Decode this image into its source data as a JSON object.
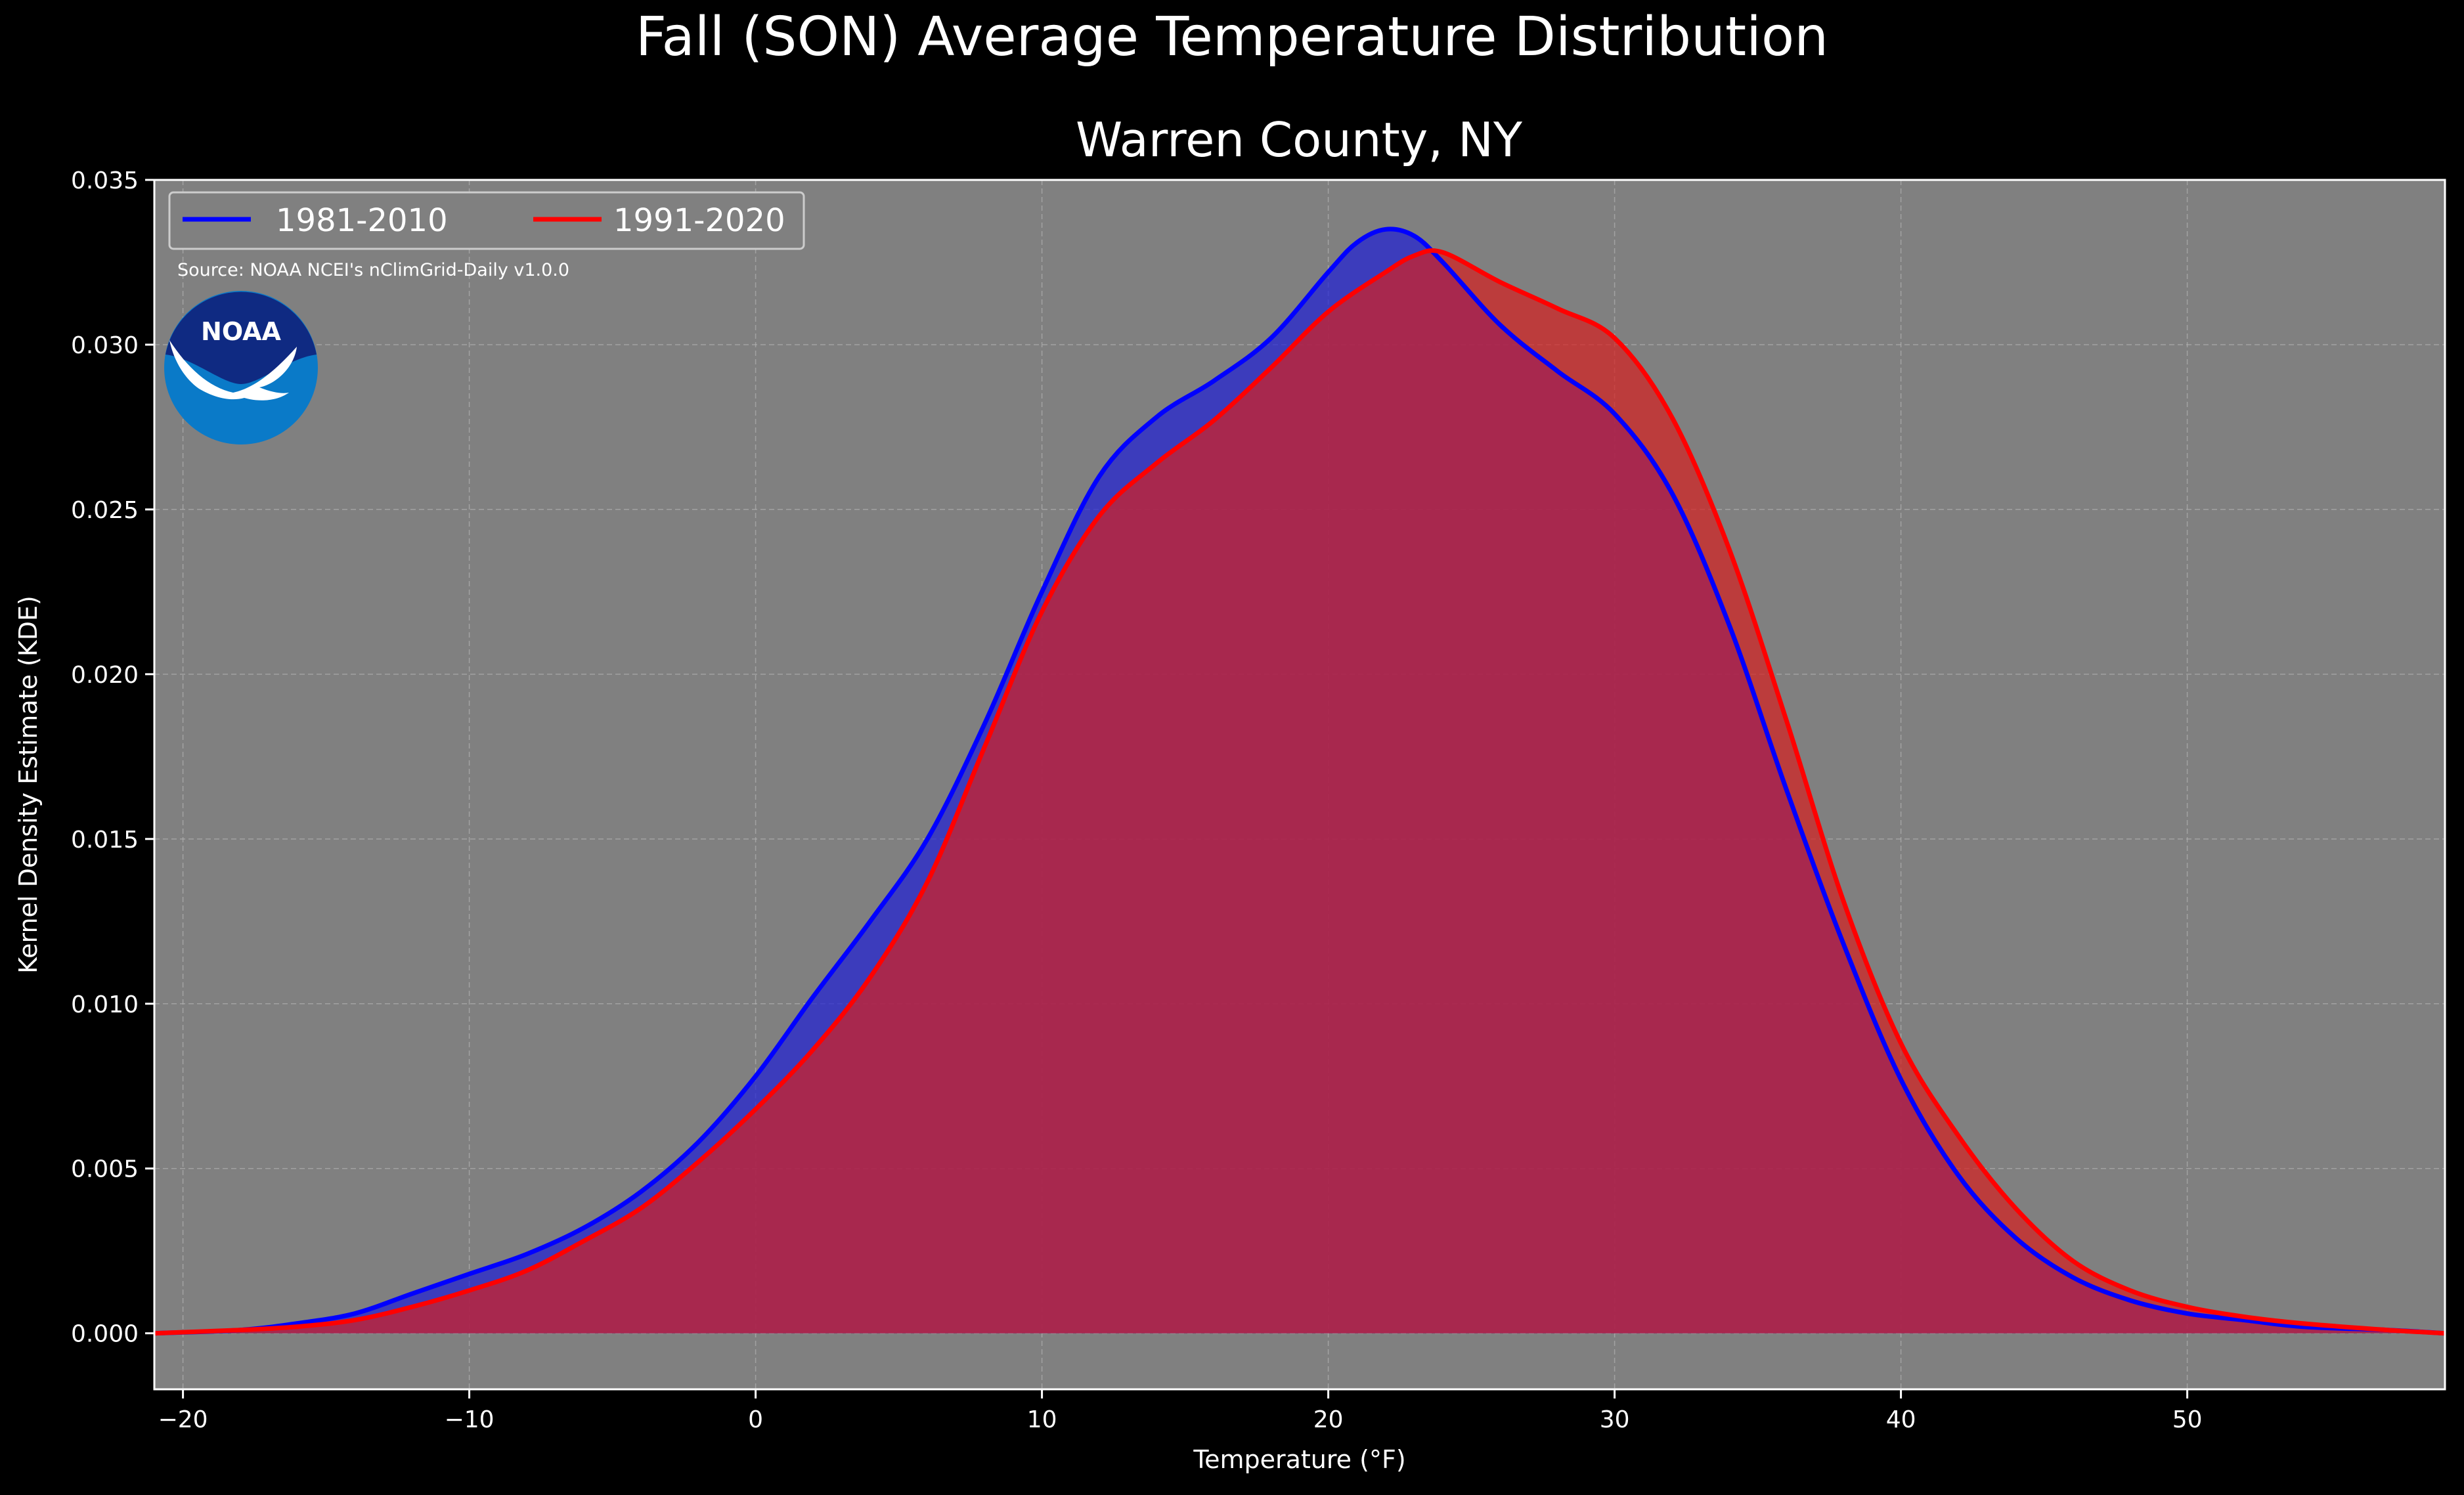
{
  "chart_data": {
    "type": "area",
    "title": "Fall (SON) Average Temperature Distribution",
    "subtitle": "Warren County, NY",
    "xlabel": "Temperature (°F)",
    "ylabel": "Kernel Density Estimate (KDE)",
    "xlim": [
      -21,
      59
    ],
    "ylim": [
      -0.0017,
      0.035
    ],
    "x_ticks": [
      -20,
      -10,
      0,
      10,
      20,
      30,
      40,
      50
    ],
    "x_tick_labels": [
      "−20",
      "−10",
      "0",
      "10",
      "20",
      "30",
      "40",
      "50"
    ],
    "y_ticks": [
      0.0,
      0.005,
      0.01,
      0.015,
      0.02,
      0.025,
      0.03,
      0.035
    ],
    "y_tick_labels": [
      "0.000",
      "0.005",
      "0.010",
      "0.015",
      "0.020",
      "0.025",
      "0.030",
      "0.035"
    ],
    "grid": true,
    "legend_position": "top-left",
    "source_note": "Source: NOAA NCEI's nClimGrid-Daily v1.0.0",
    "logo_text": "NOAA",
    "background_color": "#000000",
    "plot_background_color": "#808080",
    "series": [
      {
        "name": "1981-2010",
        "color": "#0000ff",
        "fill_color": "#2020d6",
        "points": [
          [
            -21,
            0
          ],
          [
            -18,
            0.0001
          ],
          [
            -16,
            0.0003
          ],
          [
            -14,
            0.0006
          ],
          [
            -12,
            0.0012
          ],
          [
            -10,
            0.0018
          ],
          [
            -8,
            0.0024
          ],
          [
            -6,
            0.0032
          ],
          [
            -4,
            0.0043
          ],
          [
            -2,
            0.0058
          ],
          [
            0,
            0.0078
          ],
          [
            2,
            0.0102
          ],
          [
            4,
            0.0125
          ],
          [
            6,
            0.015
          ],
          [
            8,
            0.0185
          ],
          [
            10,
            0.0225
          ],
          [
            12,
            0.026
          ],
          [
            14,
            0.0278
          ],
          [
            16,
            0.0289
          ],
          [
            18,
            0.0302
          ],
          [
            20,
            0.0322
          ],
          [
            21,
            0.0331
          ],
          [
            22,
            0.0335
          ],
          [
            23,
            0.0333
          ],
          [
            24,
            0.0325
          ],
          [
            26,
            0.0306
          ],
          [
            28,
            0.0292
          ],
          [
            30,
            0.0279
          ],
          [
            32,
            0.0255
          ],
          [
            34,
            0.0215
          ],
          [
            36,
            0.0165
          ],
          [
            38,
            0.0118
          ],
          [
            40,
            0.0077
          ],
          [
            42,
            0.0048
          ],
          [
            44,
            0.0029
          ],
          [
            46,
            0.0017
          ],
          [
            48,
            0.001
          ],
          [
            50,
            0.0006
          ],
          [
            52,
            0.0004
          ],
          [
            54,
            0.0002
          ],
          [
            57,
            0.0001
          ],
          [
            59,
            0
          ]
        ]
      },
      {
        "name": "1991-2020",
        "color": "#ff0000",
        "fill_color": "#d62020",
        "points": [
          [
            -21,
            0
          ],
          [
            -18,
            0.0001
          ],
          [
            -16,
            0.0002
          ],
          [
            -14,
            0.0004
          ],
          [
            -12,
            0.0008
          ],
          [
            -10,
            0.0013
          ],
          [
            -8,
            0.0019
          ],
          [
            -6,
            0.0028
          ],
          [
            -4,
            0.0038
          ],
          [
            -2,
            0.0052
          ],
          [
            0,
            0.0068
          ],
          [
            2,
            0.0086
          ],
          [
            4,
            0.0108
          ],
          [
            6,
            0.0137
          ],
          [
            8,
            0.0178
          ],
          [
            10,
            0.0219
          ],
          [
            12,
            0.0248
          ],
          [
            14,
            0.0264
          ],
          [
            16,
            0.0277
          ],
          [
            18,
            0.0293
          ],
          [
            20,
            0.031
          ],
          [
            22,
            0.0322
          ],
          [
            23,
            0.0327
          ],
          [
            24,
            0.0328
          ],
          [
            26,
            0.0319
          ],
          [
            28,
            0.0311
          ],
          [
            30,
            0.0302
          ],
          [
            32,
            0.0278
          ],
          [
            34,
            0.0238
          ],
          [
            36,
            0.0186
          ],
          [
            38,
            0.0131
          ],
          [
            40,
            0.0088
          ],
          [
            42,
            0.006
          ],
          [
            44,
            0.0038
          ],
          [
            46,
            0.0022
          ],
          [
            48,
            0.0013
          ],
          [
            50,
            0.0008
          ],
          [
            52,
            0.0005
          ],
          [
            54,
            0.0003
          ],
          [
            57,
            0.0001
          ],
          [
            59,
            0
          ]
        ]
      }
    ]
  }
}
